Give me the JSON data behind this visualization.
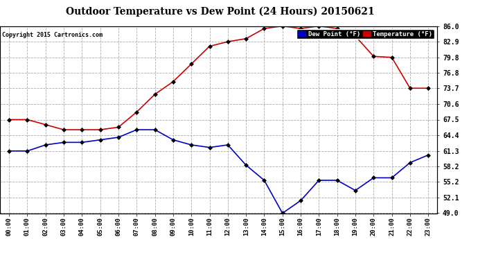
{
  "title": "Outdoor Temperature vs Dew Point (24 Hours) 20150621",
  "copyright": "Copyright 2015 Cartronics.com",
  "background_color": "#ffffff",
  "grid_color": "#aaaaaa",
  "hours": [
    0,
    1,
    2,
    3,
    4,
    5,
    6,
    7,
    8,
    9,
    10,
    11,
    12,
    13,
    14,
    15,
    16,
    17,
    18,
    19,
    20,
    21,
    22,
    23
  ],
  "temperature": [
    67.5,
    67.5,
    66.5,
    65.5,
    65.5,
    65.5,
    66.0,
    69.0,
    72.5,
    75.0,
    78.5,
    82.0,
    82.9,
    83.5,
    85.5,
    86.0,
    85.5,
    86.0,
    85.5,
    84.0,
    80.0,
    79.8,
    73.7,
    73.7
  ],
  "dew_point": [
    61.3,
    61.3,
    62.5,
    63.0,
    63.0,
    63.5,
    64.0,
    65.5,
    65.5,
    63.5,
    62.5,
    62.0,
    62.5,
    58.5,
    55.5,
    49.0,
    51.5,
    55.5,
    55.5,
    53.5,
    56.0,
    56.0,
    59.0,
    60.5
  ],
  "temp_color": "#cc0000",
  "dew_color": "#0000cc",
  "ylim": [
    49.0,
    86.0
  ],
  "yticks": [
    49.0,
    52.1,
    55.2,
    58.2,
    61.3,
    64.4,
    67.5,
    70.6,
    73.7,
    76.8,
    79.8,
    82.9,
    86.0
  ],
  "marker": "D",
  "marker_size": 3,
  "linewidth": 1.2,
  "title_fontsize": 10,
  "tick_fontsize": 6.5
}
